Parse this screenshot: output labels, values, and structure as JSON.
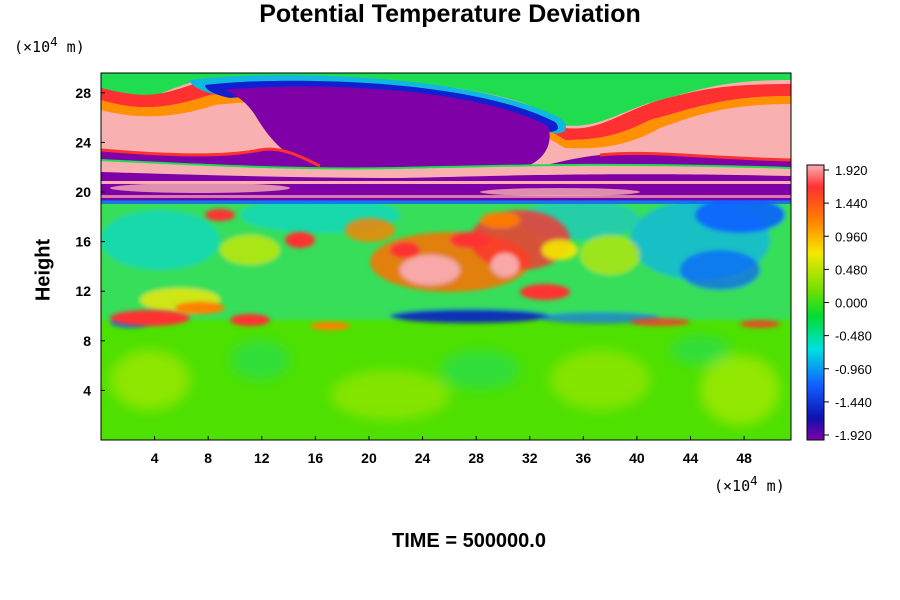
{
  "chart_data": {
    "type": "heatmap",
    "title": "Potential Temperature Deviation",
    "ylabel": "Height",
    "xlabel": "",
    "y_unit": {
      "prefix": "(×10",
      "exp": "4",
      "suffix": " m)"
    },
    "x_unit": {
      "prefix": "(×10",
      "exp": "4",
      "suffix": " m)"
    },
    "xlim": [
      0,
      51.5
    ],
    "ylim": [
      0,
      29.6
    ],
    "x_ticks": [
      4,
      8,
      12,
      16,
      20,
      24,
      28,
      32,
      36,
      40,
      44,
      48
    ],
    "y_ticks": [
      4,
      8,
      12,
      16,
      20,
      24,
      28
    ],
    "colorbar": {
      "ticks": [
        "1.920",
        "1.440",
        "0.960",
        "0.480",
        "0.000",
        "-0.480",
        "-0.960",
        "-1.440",
        "-1.920"
      ],
      "range": [
        -1.92,
        1.92
      ],
      "colormap": "rainbow (purple-blue-cyan-green-yellow-red-pink)"
    },
    "features": [
      {
        "region": "upper layer (y 22-29)",
        "value_sign": "strong positive, max above 1.92"
      },
      {
        "region": "core at x 12-34, y 22-29",
        "value_sign": "strong negative, below -1.92"
      },
      {
        "region": "band near y 20-21",
        "value_sign": "alternating -1.92 / +1.92"
      },
      {
        "region": "turbulent layer y 10-19",
        "value_sign": "mixed, positive patches to 1.9 near x 20-36"
      },
      {
        "region": "lower layer y 0-9",
        "value_sign": "near 0, slightly positive"
      }
    ]
  },
  "footer": "TIME = 500000.0"
}
